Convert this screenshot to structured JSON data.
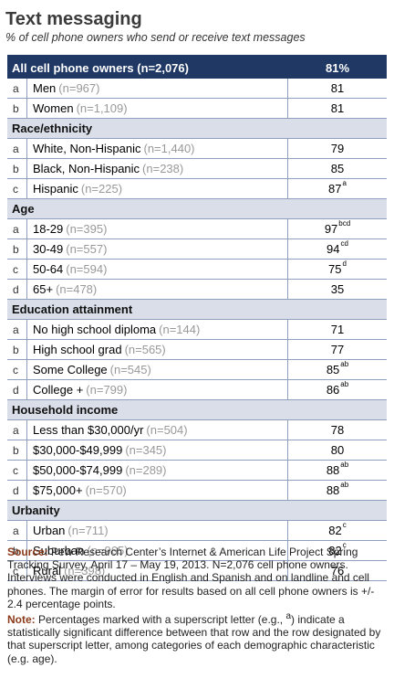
{
  "title": "Text messaging",
  "subtitle": "% of cell phone owners who send or receive text messages",
  "total": {
    "label": "All cell phone owners (n=2,076)",
    "value": "81%"
  },
  "sections": [
    {
      "type": "row",
      "letter": "a",
      "label": "Men",
      "n": "(n=967)",
      "value": "81",
      "sup": ""
    },
    {
      "type": "row",
      "letter": "b",
      "label": "Women",
      "n": "(n=1,109)",
      "value": "81",
      "sup": ""
    },
    {
      "type": "section",
      "label": "Race/ethnicity"
    },
    {
      "type": "row",
      "letter": "a",
      "label": "White, Non-Hispanic",
      "n": "(n=1,440)",
      "value": "79",
      "sup": ""
    },
    {
      "type": "row",
      "letter": "b",
      "label": "Black, Non-Hispanic",
      "n": "(n=238)",
      "value": "85",
      "sup": ""
    },
    {
      "type": "row",
      "letter": "c",
      "label": "Hispanic",
      "n": "(n=225)",
      "value": "87",
      "sup": "a"
    },
    {
      "type": "section",
      "label": "Age"
    },
    {
      "type": "row",
      "letter": "a",
      "label": "18-29",
      "n": "(n=395)",
      "value": "97",
      "sup": "bcd"
    },
    {
      "type": "row",
      "letter": "b",
      "label": "30-49",
      "n": "(n=557)",
      "value": "94",
      "sup": "cd"
    },
    {
      "type": "row",
      "letter": "c",
      "label": "50-64",
      "n": "(n=594)",
      "value": "75",
      "sup": "d"
    },
    {
      "type": "row",
      "letter": "d",
      "label": "65+",
      "n": "(n=478)",
      "value": "35",
      "sup": ""
    },
    {
      "type": "section",
      "label": "Education attainment"
    },
    {
      "type": "row",
      "letter": "a",
      "label": "No high school diploma",
      "n": "(n=144)",
      "value": "71",
      "sup": ""
    },
    {
      "type": "row",
      "letter": "b",
      "label": "High school grad",
      "n": "(n=565)",
      "value": "77",
      "sup": ""
    },
    {
      "type": "row",
      "letter": "c",
      "label": "Some College",
      "n": "(n=545)",
      "value": "85",
      "sup": "ab"
    },
    {
      "type": "row",
      "letter": "d",
      "label": "College +",
      "n": "(n=799)",
      "value": "86",
      "sup": "ab"
    },
    {
      "type": "section",
      "label": "Household income"
    },
    {
      "type": "row",
      "letter": "a",
      "label": "Less than $30,000/yr",
      "n": "(n=504)",
      "value": "78",
      "sup": ""
    },
    {
      "type": "row",
      "letter": "b",
      "label": "$30,000-$49,999",
      "n": "(n=345)",
      "value": "80",
      "sup": ""
    },
    {
      "type": "row",
      "letter": "c",
      "label": "$50,000-$74,999",
      "n": "(n=289)",
      "value": "88",
      "sup": "ab"
    },
    {
      "type": "row",
      "letter": "d",
      "label": "$75,000+",
      "n": "(n=570)",
      "value": "88",
      "sup": "ab"
    },
    {
      "type": "section",
      "label": "Urbanity"
    },
    {
      "type": "row",
      "letter": "a",
      "label": "Urban",
      "n": "(n=711)",
      "value": "82",
      "sup": "c"
    },
    {
      "type": "row",
      "letter": "b",
      "label": "Suburban",
      "n": "(n=965)",
      "value": "82",
      "sup": "c"
    },
    {
      "type": "row",
      "letter": "c",
      "label": "Rural",
      "n": "(n=398)",
      "value": "76",
      "sup": ""
    }
  ],
  "footnote": {
    "source_label": "Source:",
    "source_text": "Pew Research Center’s Internet & American Life Project Spring Tracking Survey, April 17 – May 19, 2013. N=2,076 cell phone owners. Interviews were conducted in English and Spanish and on landline and cell phones.  The margin of error for results based on all cell phone owners is +/- 2.4 percentage points.",
    "note_label": "Note:",
    "note_text_1": "Percentages marked with a superscript letter (e.g., ",
    "note_sup": "a",
    "note_text_2": ") indicate a statistically significant difference between that row and the row designated by that superscript letter, among categories of each demographic characteristic (e.g. age)."
  }
}
